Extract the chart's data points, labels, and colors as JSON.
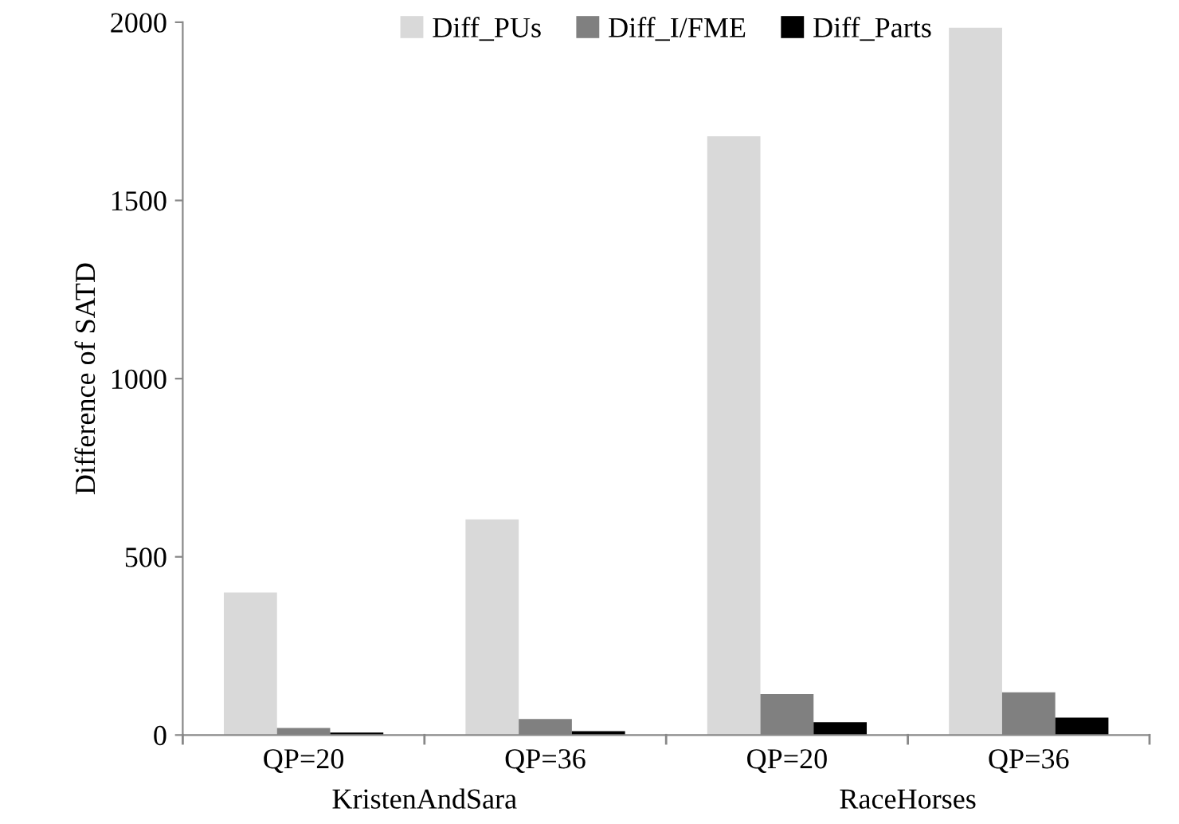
{
  "chart_data": {
    "type": "bar",
    "ylabel": "Difference of SATD",
    "categories": [
      "QP=20",
      "QP=36",
      "QP=20",
      "QP=36"
    ],
    "series": [
      {
        "name": "Diff_PUs",
        "color": "#d9d9d9",
        "values": [
          400,
          605,
          1680,
          1985
        ]
      },
      {
        "name": "Diff_I/FME",
        "color": "#808080",
        "values": [
          20,
          45,
          115,
          120
        ]
      },
      {
        "name": "Diff_Parts",
        "color": "#000000",
        "values": [
          7,
          11,
          36,
          49
        ]
      }
    ],
    "annotations": [
      "KristenAndSara",
      "RaceHorses"
    ],
    "ylim": [
      0,
      2000
    ],
    "yticks": [
      0,
      500,
      1000,
      1500,
      2000
    ],
    "grid": false,
    "legend": "top"
  }
}
